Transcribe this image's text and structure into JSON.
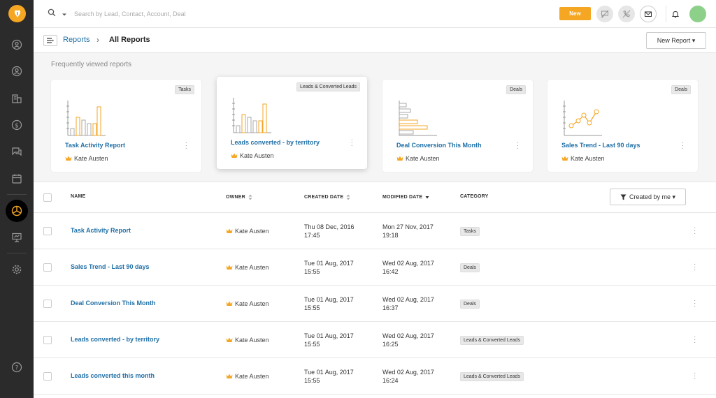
{
  "search": {
    "placeholder": "Search by Lead, Contact, Account, Deal"
  },
  "topbar": {
    "new_label": "New"
  },
  "breadcrumb": {
    "parent": "Reports",
    "separator": "›",
    "current": "All Reports"
  },
  "new_report_label": "New Report ▾",
  "frequent": {
    "title": "Frequently viewed reports",
    "cards": [
      {
        "tag": "Tasks",
        "title": "Task Activity Report",
        "owner": "Kate Austen",
        "chart": "bar"
      },
      {
        "tag": "Leads & Converted Leads",
        "title": "Leads converted - by territory",
        "owner": "Kate Austen",
        "chart": "bar"
      },
      {
        "tag": "Deals",
        "title": "Deal Conversion This Month",
        "owner": "Kate Austen",
        "chart": "hbar"
      },
      {
        "tag": "Deals",
        "title": "Sales Trend - Last 90 days",
        "owner": "Kate Austen",
        "chart": "line"
      }
    ]
  },
  "table": {
    "headers": {
      "name": "NAME",
      "owner": "OWNER",
      "created": "CREATED DATE",
      "modified": "MODIFIED DATE",
      "category": "CATEGORY"
    },
    "filter_label": "Created by me ▾",
    "rows": [
      {
        "name": "Task Activity Report",
        "owner": "Kate Austen",
        "created_date": "Thu 08 Dec, 2016",
        "created_time": "17:45",
        "modified_date": "Mon 27 Nov, 2017",
        "modified_time": "19:18",
        "category": "Tasks"
      },
      {
        "name": "Sales Trend - Last 90 days",
        "owner": "Kate Austen",
        "created_date": "Tue 01 Aug, 2017",
        "created_time": "15:55",
        "modified_date": "Wed 02 Aug, 2017",
        "modified_time": "16:42",
        "category": "Deals"
      },
      {
        "name": "Deal Conversion This Month",
        "owner": "Kate Austen",
        "created_date": "Tue 01 Aug, 2017",
        "created_time": "15:55",
        "modified_date": "Wed 02 Aug, 2017",
        "modified_time": "16:37",
        "category": "Deals"
      },
      {
        "name": "Leads converted - by territory",
        "owner": "Kate Austen",
        "created_date": "Tue 01 Aug, 2017",
        "created_time": "15:55",
        "modified_date": "Wed 02 Aug, 2017",
        "modified_time": "16:25",
        "category": "Leads & Converted Leads"
      },
      {
        "name": "Leads converted this month",
        "owner": "Kate Austen",
        "created_date": "Tue 01 Aug, 2017",
        "created_time": "15:55",
        "modified_date": "Wed 02 Aug, 2017",
        "modified_time": "16:24",
        "category": "Leads & Converted Leads"
      }
    ]
  },
  "colors": {
    "accent": "#f5a623",
    "link": "#1f6fa6",
    "sidebar": "#2b2b2b"
  },
  "icons": {
    "owner": "crown-icon",
    "sort": "sort-icon",
    "filter": "filter-icon"
  }
}
